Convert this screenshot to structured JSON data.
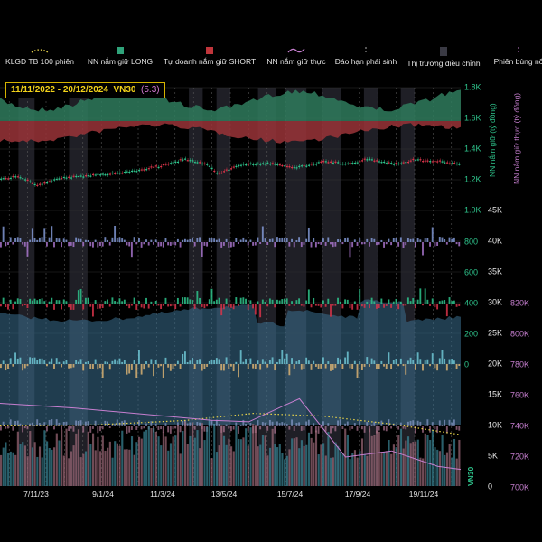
{
  "legend": [
    {
      "name": "legend-klgd",
      "label": "KLGD TB 100 phiên",
      "color": "#e6d24a",
      "kind": "dotted"
    },
    {
      "name": "legend-nn-long",
      "label": "NN nắm giữ LONG",
      "color": "#2fa37a",
      "kind": "box"
    },
    {
      "name": "legend-td-short",
      "label": "Tự doanh nắm giữ SHORT",
      "color": "#c0353b",
      "kind": "box"
    },
    {
      "name": "legend-nn-real",
      "label": "NN nắm giữ thực",
      "color": "#c77fd0",
      "kind": "wave"
    },
    {
      "name": "legend-dao-han",
      "label": "Đáo hạn phái sinh",
      "color": "#aaaaaa",
      "kind": "vdash"
    },
    {
      "name": "legend-correction",
      "label": "Thị trường điều chỉnh",
      "color": "#3a3a44",
      "kind": "block"
    },
    {
      "name": "legend-spike",
      "label": "Phiên bùng nổ",
      "color": "#c77fd0",
      "kind": "vdash"
    }
  ],
  "header": {
    "date_range": "11/11/2022 - 20/12/2024",
    "symbol": "VN30",
    "value": "(5.3)"
  },
  "colors": {
    "up": "#2ec48c",
    "down": "#d9344a",
    "nn_long": "#2f7b5d",
    "td_short": "#9a3438",
    "foreign_flow": "#3a6f8f",
    "flow_up": "#6fc5d3",
    "flow_down": "#d9b272",
    "nn_real": "#c77fd0",
    "klgd": "#e6d24a",
    "axis_green": "#2ec48c",
    "axis_purple": "#c77fd0"
  },
  "chart_data": {
    "type": "candlestick",
    "x_ticks": [
      "7/11/23",
      "9/1/24",
      "11/3/24",
      "13/5/24",
      "15/7/24",
      "17/9/24",
      "19/11/24"
    ],
    "y_left_index": {
      "ticks": [
        "1.8K",
        "1.6K",
        "1.4K",
        "1.2K",
        "1.0K"
      ],
      "range": [
        1000,
        1800
      ]
    },
    "y_left_flow": {
      "ticks": [
        "800",
        "600",
        "400",
        "200",
        "0"
      ],
      "range": [
        0,
        800
      ]
    },
    "y_left_volume": {
      "label": "VN30",
      "ticks": [
        "45K",
        "40K",
        "35K",
        "30K",
        "25K",
        "20K",
        "15K",
        "10K",
        "5K",
        "0"
      ],
      "range": [
        0,
        45000
      ]
    },
    "y_right": {
      "label": "NN nắm giữ thực (tỷ đồng)",
      "ticks": [
        "820K",
        "800K",
        "780K",
        "760K",
        "740K",
        "720K",
        "700K"
      ],
      "range": [
        700000,
        820000
      ]
    },
    "y_left_label": "NN nắm giữ (tỷ đồng)",
    "index_series": {
      "anchors_x": [
        0,
        0.04,
        0.08,
        0.13,
        0.2,
        0.28,
        0.35,
        0.4,
        0.45,
        0.47,
        0.52,
        0.58,
        0.64,
        0.7,
        0.75,
        0.8,
        0.86,
        0.9,
        0.95,
        1.0
      ],
      "values": [
        1210,
        1220,
        1160,
        1215,
        1230,
        1255,
        1290,
        1335,
        1300,
        1240,
        1300,
        1310,
        1280,
        1320,
        1305,
        1335,
        1300,
        1330,
        1320,
        1300
      ]
    },
    "nn_real_series": {
      "x": [
        0,
        0.16,
        0.46,
        0.54,
        0.62,
        0.65,
        0.75,
        0.85,
        0.95,
        1.0
      ],
      "values": [
        755000,
        752000,
        744000,
        743000,
        754000,
        758000,
        720000,
        724000,
        714000,
        712000
      ]
    },
    "klgd_avg_series": {
      "x": [
        0,
        0.2,
        0.4,
        0.55,
        0.7,
        0.85,
        1.0
      ],
      "values": [
        6800,
        6900,
        7400,
        8200,
        7900,
        7000,
        5800
      ]
    },
    "correction_bands": [
      [
        0.04,
        0.075
      ],
      [
        0.15,
        0.19
      ],
      [
        0.41,
        0.44
      ],
      [
        0.47,
        0.5
      ],
      [
        0.56,
        0.6
      ],
      [
        0.62,
        0.665
      ],
      [
        0.7,
        0.74
      ],
      [
        0.79,
        0.82
      ],
      [
        0.87,
        0.9
      ]
    ]
  }
}
